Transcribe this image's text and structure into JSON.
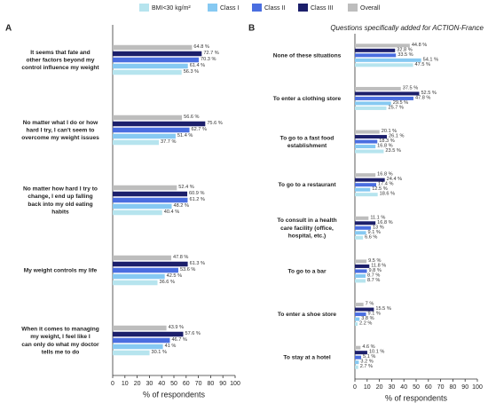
{
  "chart_data": [
    {
      "type": "bar",
      "orientation": "horizontal",
      "panel": "A",
      "xlabel": "% of respondents",
      "categories": [
        "It seems that fate and other factors beyond my control influence my weight",
        "No matter what I do or how hard I try, I can't seem to overcome my weight issues",
        "No matter how hard I try to change, I end up falling back into my old eating habits",
        "My weight controls my life",
        "When it comes to managing my weight, I feel like I can only do what my doctor tells me to do"
      ],
      "series": [
        {
          "name": "Overall",
          "color": "#bdbdbd",
          "values": [
            64.8,
            56.6,
            52.4,
            47.8,
            43.9
          ],
          "value_labels": [
            "64.8 %",
            "56.6 %",
            "52.4 %",
            "47.8 %",
            "43.9 %"
          ]
        },
        {
          "name": "Class III",
          "color": "#1c1f6b",
          "values": [
            72.7,
            75.6,
            60.9,
            61.3,
            57.6
          ],
          "value_labels": [
            "72.7 %",
            "75.6 %",
            "60.9 %",
            "61.3 %",
            "57.6 %"
          ]
        },
        {
          "name": "Class II",
          "color": "#4a6ee0",
          "values": [
            70.3,
            62.7,
            61.2,
            53.6,
            46.7
          ],
          "value_labels": [
            "70.3 %",
            "62.7 %",
            "61.2 %",
            "53.6 %",
            "46.7 %"
          ]
        },
        {
          "name": "Class I",
          "color": "#86c9f2",
          "values": [
            61.4,
            51.4,
            48.2,
            42.5,
            41
          ],
          "value_labels": [
            "61.4 %",
            "51.4 %",
            "48.2 %",
            "42.5 %",
            "41 %"
          ]
        },
        {
          "name": "BMI<30 kg/m²",
          "color": "#b6e4ee",
          "values": [
            56.3,
            37.7,
            40.4,
            36.6,
            30.1
          ],
          "value_labels": [
            "56.3 %",
            "37.7 %",
            "40.4 %",
            "36.6 %",
            "30.1 %"
          ]
        }
      ],
      "xlim": [
        0,
        100
      ],
      "xticks": [
        0,
        10,
        20,
        30,
        40,
        50,
        60,
        70,
        80,
        90,
        100
      ]
    },
    {
      "type": "bar",
      "orientation": "horizontal",
      "panel": "B",
      "subtitle": "Questions specifically added for ACTION-France",
      "xlabel": "% of respondents",
      "categories": [
        "None of these situations",
        "To enter a clothing store",
        "To go to a fast food establishment",
        "To go to a restaurant",
        "To consult in a health care facility (office, hospital, etc.)",
        "To go to a bar",
        "To enter a shoe store",
        "To stay at a hotel"
      ],
      "series": [
        {
          "values": [
            44.8,
            37.5,
            20.1,
            16.8,
            11.1,
            9.5,
            7,
            4.6
          ],
          "value_labels": [
            "44.8 %",
            "37.5 %",
            "20.1 %",
            "16.8 %",
            "11.1 %",
            "9.5 %",
            "7 %",
            "4.6 %"
          ]
        },
        {
          "values": [
            32.8,
            52.5,
            26.1,
            24.4,
            16.8,
            11.8,
            15.5,
            10.1
          ],
          "value_labels": [
            "32.8 %",
            "52.5 %",
            "26.1 %",
            "24.4 %",
            "16.8 %",
            "11.8 %",
            "15.5 %",
            "10.1 %"
          ]
        },
        {
          "values": [
            33.5,
            47.8,
            18.3,
            17.4,
            13,
            9.8,
            9.1,
            5.1
          ],
          "value_labels": [
            "33.5 %",
            "47.8 %",
            "18.3 %",
            "17.4 %",
            "13 %",
            "9.8 %",
            "9.1 %",
            "5.1 %"
          ]
        },
        {
          "values": [
            54.1,
            29.5,
            16.8,
            12.5,
            9.1,
            8.7,
            3.8,
            3.2
          ],
          "value_labels": [
            "54.1 %",
            "29.5 %",
            "16.8 %",
            "12.5 %",
            "9.1 %",
            "8.7 %",
            "3.8 %",
            "3.2 %"
          ]
        },
        {
          "values": [
            47.5,
            25.7,
            23.5,
            18.6,
            6.6,
            8.7,
            2.2,
            2.7
          ],
          "value_labels": [
            "47.5 %",
            "25.7 %",
            "23.5 %",
            "18.6 %",
            "6.6 %",
            "8.7 %",
            "2.2 %",
            "2.7 %"
          ]
        }
      ],
      "xlim": [
        0,
        100
      ],
      "xticks": [
        0,
        10,
        20,
        30,
        40,
        50,
        60,
        70,
        80,
        90,
        100
      ]
    }
  ]
}
